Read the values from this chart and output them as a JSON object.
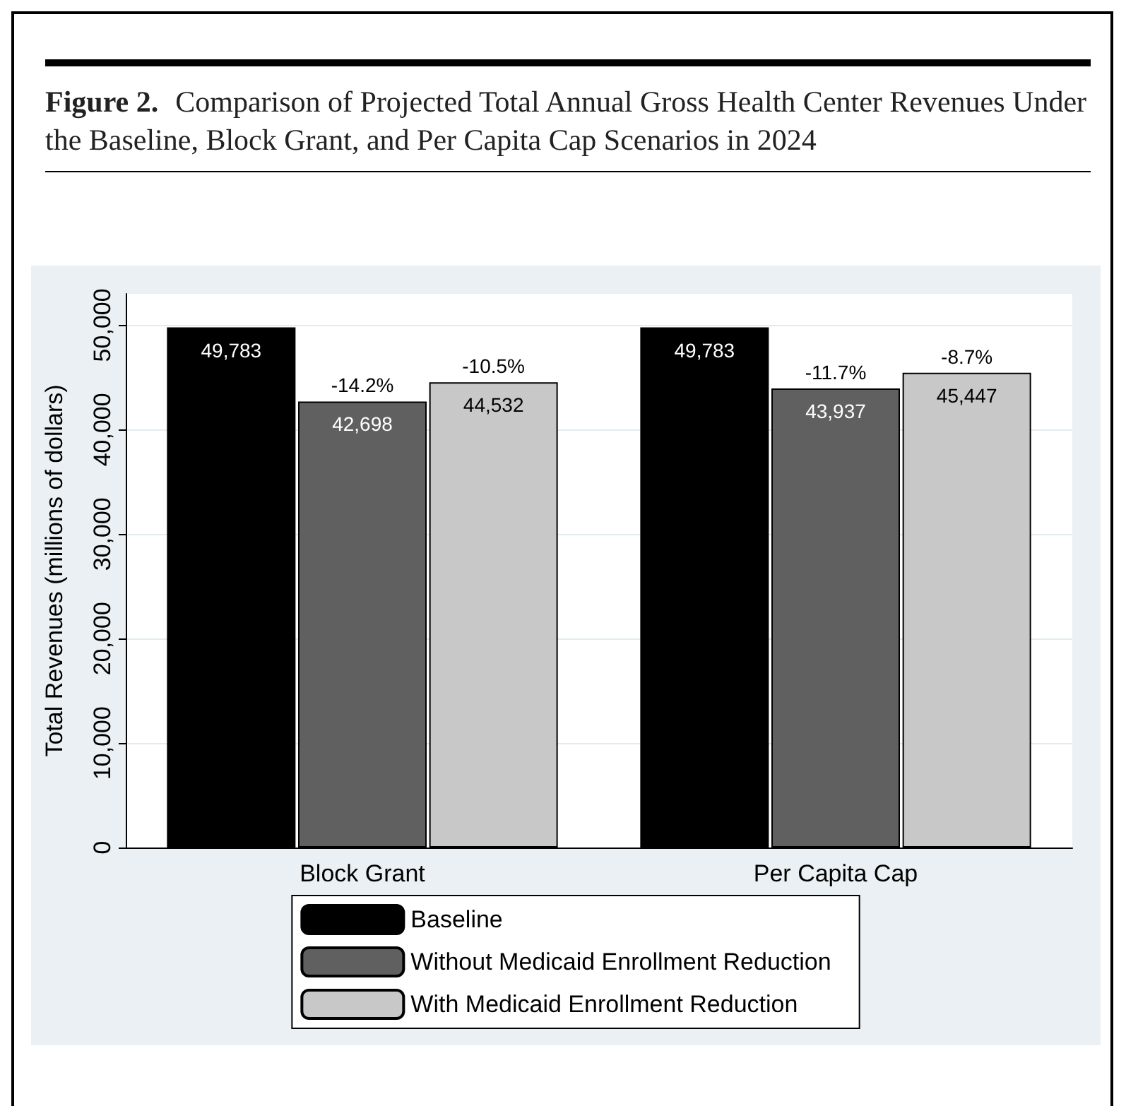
{
  "chart_data": {
    "type": "bar",
    "title": "Figure 2.",
    "subtitle": "Comparison of Projected Total Annual Gross Health Center Revenues Under the Baseline, Block Grant, and Per Capita Cap Scenarios in 2024",
    "ylabel": "Total Revenues (millions of dollars)",
    "categories": [
      "Block Grant",
      "Per Capita Cap"
    ],
    "series": [
      {
        "name": "Baseline",
        "color": "#000000",
        "values": [
          49783,
          49783
        ],
        "value_labels": [
          "49,783",
          "49,783"
        ]
      },
      {
        "name": "Without Medicaid Enrollment Reduction",
        "color": "#606060",
        "values": [
          42698,
          43937
        ],
        "value_labels": [
          "42,698",
          "43,937"
        ]
      },
      {
        "name": "With Medicaid Enrollment Reduction",
        "color": "#c8c8c8",
        "values": [
          44532,
          45447
        ],
        "value_labels": [
          "44,532",
          "45,447"
        ]
      }
    ],
    "ylim": [
      0,
      53000
    ],
    "yticks": [
      {
        "value": 0,
        "label": "0"
      },
      {
        "value": 10000,
        "label": "10,000"
      },
      {
        "value": 20000,
        "label": "20,000"
      },
      {
        "value": 30000,
        "label": "30,000"
      },
      {
        "value": 40000,
        "label": "40,000"
      },
      {
        "value": 50000,
        "label": "50,000"
      }
    ],
    "grid": "y",
    "legend": "bottom",
    "annotations": [
      "-14.2%",
      "-10.5%",
      "-11.7%",
      "-8.7%"
    ]
  }
}
